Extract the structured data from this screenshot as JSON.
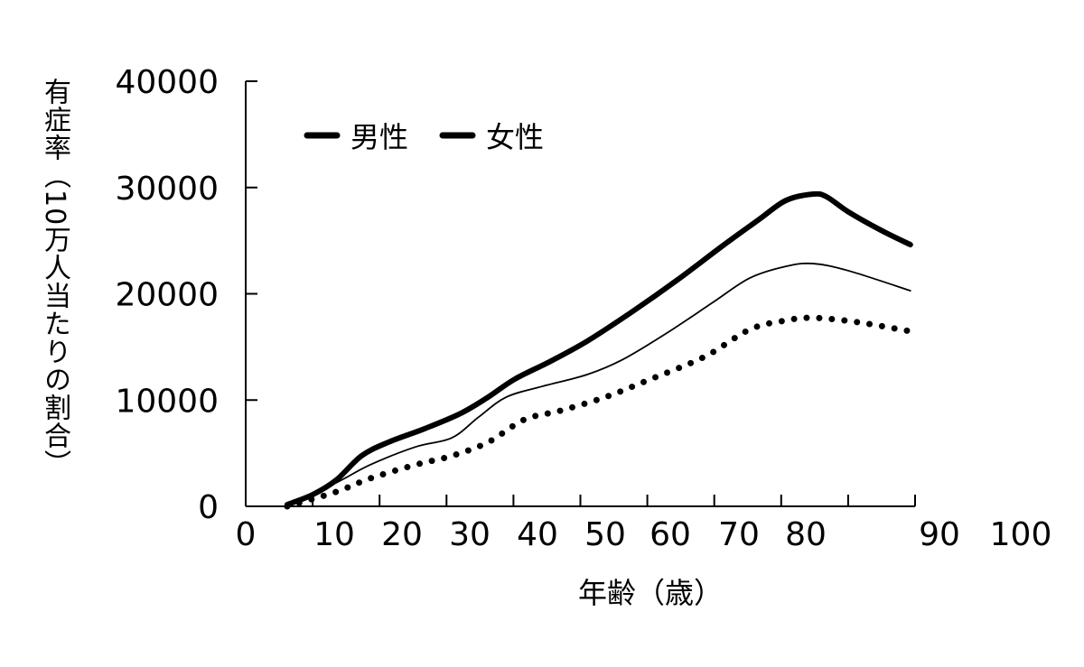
{
  "chart_data": {
    "type": "line",
    "title": "",
    "xlabel": "年齢（歳）",
    "ylabel": "有症率（10万人当たりの割合）",
    "xlim": [
      0,
      100
    ],
    "ylim": [
      0,
      40000
    ],
    "x_ticks": [
      "0",
      "10",
      "20",
      "30",
      "40",
      "50",
      "60",
      "70",
      "80",
      "90",
      "100"
    ],
    "y_ticks": [
      "0",
      "10000",
      "20000",
      "30000",
      "40000"
    ],
    "grid": false,
    "legend": {
      "placement": "top-left",
      "entries": [
        "男性",
        "女性"
      ]
    },
    "series": [
      {
        "style": "thick solid",
        "color": "#000000",
        "x": [
          6.2,
          10,
          13.5,
          17.3,
          21.3,
          26.7,
          32.1,
          36.2,
          40.2,
          45.6,
          51,
          57.8,
          64.5,
          71.3,
          76.7,
          80.7,
          84.8,
          86.8,
          90.1,
          94.9,
          99.3
        ],
        "y": [
          170,
          1100,
          2460,
          4750,
          6030,
          7300,
          8740,
          10270,
          11970,
          13670,
          15540,
          18340,
          21310,
          24540,
          27000,
          28780,
          29380,
          29120,
          27680,
          25980,
          24620
        ]
      },
      {
        "style": "thin solid",
        "color": "#000000",
        "x": [
          6.2,
          13.5,
          18.6,
          25.4,
          30.8,
          34.8,
          38.9,
          44.3,
          51,
          56.4,
          63.1,
          69.8,
          75.3,
          80.7,
          84.8,
          90.1,
          99.3
        ],
        "y": [
          85,
          2210,
          3910,
          5600,
          6450,
          8400,
          10270,
          11290,
          12400,
          13840,
          16380,
          19190,
          21480,
          22580,
          22840,
          22160,
          20290
        ]
      },
      {
        "style": "dotted",
        "color": "#000000",
        "x": [
          6.2,
          13.5,
          18.6,
          25.4,
          30.8,
          36.2,
          41.6,
          47,
          53.7,
          60.5,
          68.6,
          75.3,
          80.7,
          84.8,
          91.5,
          99.3
        ],
        "y": [
          0,
          1360,
          2630,
          3910,
          4750,
          6030,
          8150,
          9000,
          10270,
          11970,
          14090,
          16640,
          17490,
          17740,
          17320,
          16470
        ]
      }
    ]
  }
}
